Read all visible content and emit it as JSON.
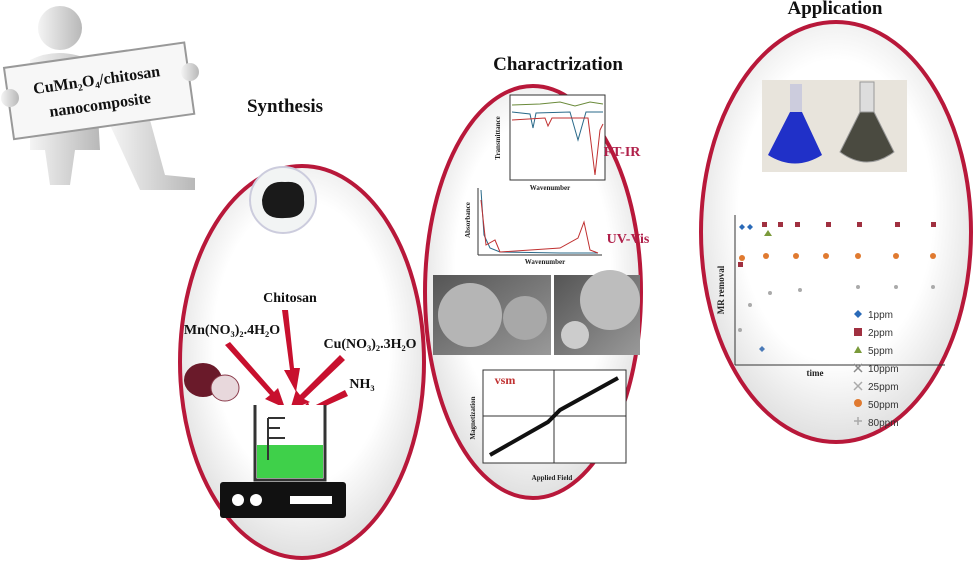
{
  "label": {
    "line1": "CuMn₂O₄/chitosan",
    "line2": "nanocomposite"
  },
  "titles": {
    "synthesis": "Synthesis",
    "characterization": "Charactrization",
    "application": "Application"
  },
  "synthesis": {
    "reagents": [
      "Chitosan",
      "Mn(NO₃)₂.4H₂O",
      "Cu(NO₃)₂.3H₂O",
      "NH₃"
    ]
  },
  "characterization": {
    "ftir": {
      "label": "FT-IR",
      "y_axis": "Transmittance",
      "x_axis": "Wavenumber"
    },
    "uvvis": {
      "label": "UV-Vis",
      "y_axis": "Absorbance",
      "x_axis": "Wavenumber"
    },
    "vsm": {
      "label": "vsm",
      "y_axis": "Magnetization",
      "x_axis": "Applied Field"
    }
  },
  "application": {
    "y_axis": "MR removal",
    "x_axis": "time",
    "legend": [
      "1ppm",
      "2ppm",
      "5ppm",
      "10ppm",
      "25ppm",
      "50ppm",
      "80ppm"
    ]
  }
}
